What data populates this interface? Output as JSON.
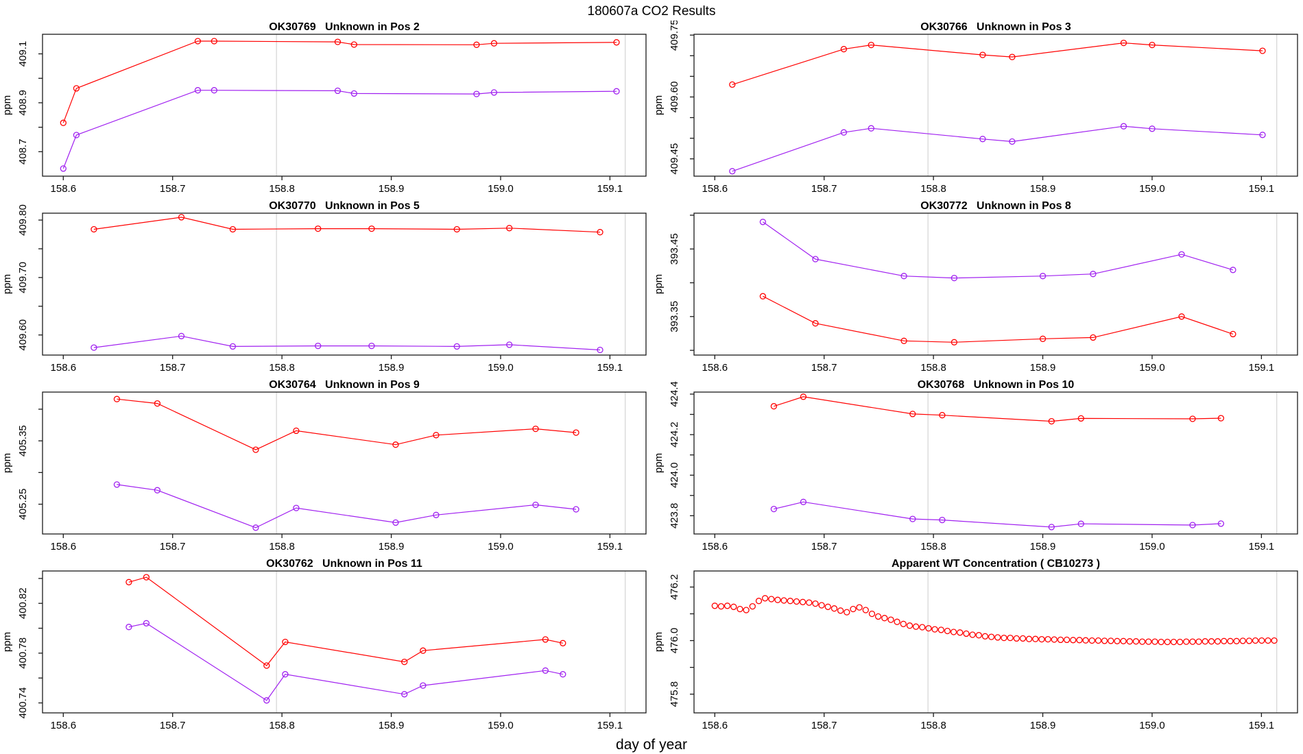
{
  "page_title": "180607a  CO2 Results",
  "x_axis_label": "day of year",
  "axis": {
    "lim": [
      158.581,
      159.133
    ],
    "ticks": [
      "158.6",
      "158.7",
      "158.8",
      "158.9",
      "159.0",
      "159.1"
    ],
    "grid": [
      158.795,
      159.114
    ],
    "grid_color": "#d4d4d4",
    "axis_color": "#1a1a1a"
  },
  "series_colors": {
    "red": "#ff0000",
    "purple": "#a020f0"
  },
  "chart_data": [
    {
      "type": "line",
      "title": "OK30769   Unknown in Pos 2",
      "ylabel": "ppm",
      "ylim": [
        408.6,
        409.18
      ],
      "yticks": [
        "408.7",
        "408.9",
        "409.1"
      ],
      "yminor": [
        408.8,
        409.0
      ],
      "grid": true,
      "series": [
        {
          "name": "red",
          "color": "#ff0000",
          "x": [
            158.6,
            158.612,
            158.723,
            158.738,
            158.851,
            158.866,
            158.978,
            158.994,
            159.106
          ],
          "y": [
            408.818,
            408.959,
            409.152,
            409.152,
            409.149,
            409.138,
            409.137,
            409.143,
            409.147
          ]
        },
        {
          "name": "purple",
          "color": "#a020f0",
          "x": [
            158.6,
            158.612,
            158.723,
            158.738,
            158.851,
            158.866,
            158.978,
            158.994,
            159.106
          ],
          "y": [
            408.631,
            408.768,
            408.951,
            408.951,
            408.949,
            408.938,
            408.936,
            408.942,
            408.947
          ]
        }
      ]
    },
    {
      "type": "line",
      "title": "OK30766   Unknown in Pos 3",
      "ylabel": "ppm",
      "ylim": [
        409.408,
        409.752
      ],
      "yticks": [
        "409.45",
        "409.60",
        "409.75"
      ],
      "yminor": [
        409.5,
        409.55,
        409.65,
        409.7
      ],
      "grid": true,
      "series": [
        {
          "name": "red",
          "color": "#ff0000",
          "x": [
            158.616,
            158.718,
            158.743,
            158.845,
            158.872,
            158.974,
            159.0,
            159.101
          ],
          "y": [
            409.63,
            409.716,
            409.726,
            409.702,
            409.697,
            409.731,
            409.726,
            409.712
          ]
        },
        {
          "name": "purple",
          "color": "#a020f0",
          "x": [
            158.616,
            158.718,
            158.743,
            158.845,
            158.872,
            158.974,
            159.0,
            159.101
          ],
          "y": [
            409.42,
            409.514,
            409.524,
            409.498,
            409.492,
            409.529,
            409.523,
            409.508
          ]
        }
      ]
    },
    {
      "type": "line",
      "title": "OK30770   Unknown in Pos 5",
      "ylabel": "ppm",
      "ylim": [
        409.565,
        409.812
      ],
      "yticks": [
        "409.60",
        "409.70",
        "409.80"
      ],
      "yminor": [
        409.65,
        409.75
      ],
      "grid": true,
      "series": [
        {
          "name": "red",
          "color": "#ff0000",
          "x": [
            158.628,
            158.708,
            158.755,
            158.833,
            158.882,
            158.96,
            159.008,
            159.091
          ],
          "y": [
            409.784,
            409.805,
            409.784,
            409.785,
            409.785,
            409.784,
            409.786,
            409.779
          ]
        },
        {
          "name": "purple",
          "color": "#a020f0",
          "x": [
            158.628,
            158.708,
            158.755,
            158.833,
            158.882,
            158.96,
            159.008,
            159.091
          ],
          "y": [
            409.578,
            409.598,
            409.58,
            409.581,
            409.581,
            409.58,
            409.583,
            409.574
          ]
        }
      ]
    },
    {
      "type": "line",
      "title": "OK30772   Unknown in Pos 8",
      "ylabel": "ppm",
      "ylim": [
        393.293,
        393.503
      ],
      "yticks": [
        "393.35",
        "393.45"
      ],
      "yminor": [
        393.3,
        393.4,
        393.5
      ],
      "grid": true,
      "series": [
        {
          "name": "red",
          "color": "#ff0000",
          "x": [
            158.644,
            158.692,
            158.773,
            158.819,
            158.9,
            158.946,
            159.027,
            159.074
          ],
          "y": [
            393.38,
            393.34,
            393.314,
            393.312,
            393.317,
            393.319,
            393.35,
            393.324
          ]
        },
        {
          "name": "purple",
          "color": "#a020f0",
          "x": [
            158.644,
            158.692,
            158.773,
            158.819,
            158.9,
            158.946,
            159.027,
            159.074
          ],
          "y": [
            393.49,
            393.435,
            393.41,
            393.407,
            393.41,
            393.413,
            393.442,
            393.419
          ]
        }
      ]
    },
    {
      "type": "line",
      "title": "OK30764   Unknown in Pos 9",
      "ylabel": "ppm",
      "ylim": [
        405.203,
        405.427
      ],
      "yticks": [
        "405.25",
        "405.35"
      ],
      "yminor": [
        405.3,
        405.4
      ],
      "grid": true,
      "series": [
        {
          "name": "red",
          "color": "#ff0000",
          "x": [
            158.649,
            158.686,
            158.776,
            158.813,
            158.904,
            158.941,
            159.032,
            159.069
          ],
          "y": [
            405.416,
            405.409,
            405.336,
            405.366,
            405.344,
            405.359,
            405.369,
            405.363
          ]
        },
        {
          "name": "purple",
          "color": "#a020f0",
          "x": [
            158.649,
            158.686,
            158.776,
            158.813,
            158.904,
            158.941,
            159.032,
            159.069
          ],
          "y": [
            405.281,
            405.272,
            405.213,
            405.244,
            405.221,
            405.233,
            405.249,
            405.242
          ]
        }
      ]
    },
    {
      "type": "line",
      "title": "OK30768   Unknown in Pos 10",
      "ylabel": "ppm",
      "ylim": [
        423.71,
        424.41
      ],
      "yticks": [
        "423.8",
        "424.0",
        "424.2",
        "424.4"
      ],
      "yminor": [
        423.9,
        424.1,
        424.3
      ],
      "grid": true,
      "series": [
        {
          "name": "red",
          "color": "#ff0000",
          "x": [
            158.654,
            158.681,
            158.781,
            158.808,
            158.908,
            158.935,
            159.037,
            159.063
          ],
          "y": [
            424.34,
            424.387,
            424.302,
            424.296,
            424.266,
            424.28,
            424.278,
            424.281
          ]
        },
        {
          "name": "purple",
          "color": "#a020f0",
          "x": [
            158.654,
            158.681,
            158.781,
            158.808,
            158.908,
            158.935,
            159.037,
            159.063
          ],
          "y": [
            423.833,
            423.868,
            423.784,
            423.779,
            423.744,
            423.76,
            423.754,
            423.761
          ]
        }
      ]
    },
    {
      "type": "line",
      "title": "OK30762   Unknown in Pos 11",
      "ylabel": "ppm",
      "ylim": [
        400.732,
        400.846
      ],
      "yticks": [
        "400.74",
        "400.78",
        "400.82"
      ],
      "yminor": [
        400.76,
        400.8,
        400.84
      ],
      "grid": true,
      "series": [
        {
          "name": "red",
          "color": "#ff0000",
          "x": [
            158.66,
            158.676,
            158.786,
            158.803,
            158.912,
            158.929,
            159.041,
            159.057
          ],
          "y": [
            400.837,
            400.841,
            400.77,
            400.789,
            400.773,
            400.782,
            400.791,
            400.788
          ]
        },
        {
          "name": "purple",
          "color": "#a020f0",
          "x": [
            158.66,
            158.676,
            158.786,
            158.803,
            158.912,
            158.929,
            159.041,
            159.057
          ],
          "y": [
            400.801,
            400.804,
            400.742,
            400.763,
            400.747,
            400.754,
            400.766,
            400.763
          ]
        }
      ]
    },
    {
      "type": "scatter",
      "title": "Apparent WT Concentration ( CB10273 )",
      "ylabel": "ppm",
      "ylim": [
        475.73,
        476.26
      ],
      "yticks": [
        "475.8",
        "476.0",
        "476.2"
      ],
      "yminor": [
        475.9,
        476.1
      ],
      "grid": true,
      "series": [
        {
          "name": "red",
          "color": "#ff0000",
          "line": false,
          "x_start": 158.6,
          "x_step": 0.00575,
          "y": [
            476.13,
            476.128,
            476.13,
            476.126,
            476.118,
            476.114,
            476.128,
            476.148,
            476.158,
            476.155,
            476.152,
            476.15,
            476.148,
            476.146,
            476.144,
            476.142,
            476.138,
            476.132,
            476.126,
            476.12,
            476.112,
            476.106,
            476.118,
            476.124,
            476.114,
            476.1,
            476.09,
            476.084,
            476.078,
            476.07,
            476.062,
            476.056,
            476.052,
            476.05,
            476.046,
            476.042,
            476.04,
            476.036,
            476.032,
            476.03,
            476.026,
            476.022,
            476.02,
            476.016,
            476.014,
            476.012,
            476.01,
            476.01,
            476.008,
            476.008,
            476.006,
            476.006,
            476.005,
            476.005,
            476.004,
            476.003,
            476.003,
            476.002,
            476.002,
            476.001,
            476.0,
            476.0,
            475.999,
            475.999,
            475.998,
            475.998,
            475.997,
            475.997,
            475.996,
            475.996,
            475.996,
            475.995,
            475.995,
            475.995,
            475.995,
            475.996,
            475.996,
            475.996,
            475.997,
            475.997,
            475.997,
            475.998,
            475.998,
            475.998,
            475.999,
            475.999,
            476.0,
            476.0,
            476.0,
            476.0
          ]
        }
      ]
    }
  ]
}
